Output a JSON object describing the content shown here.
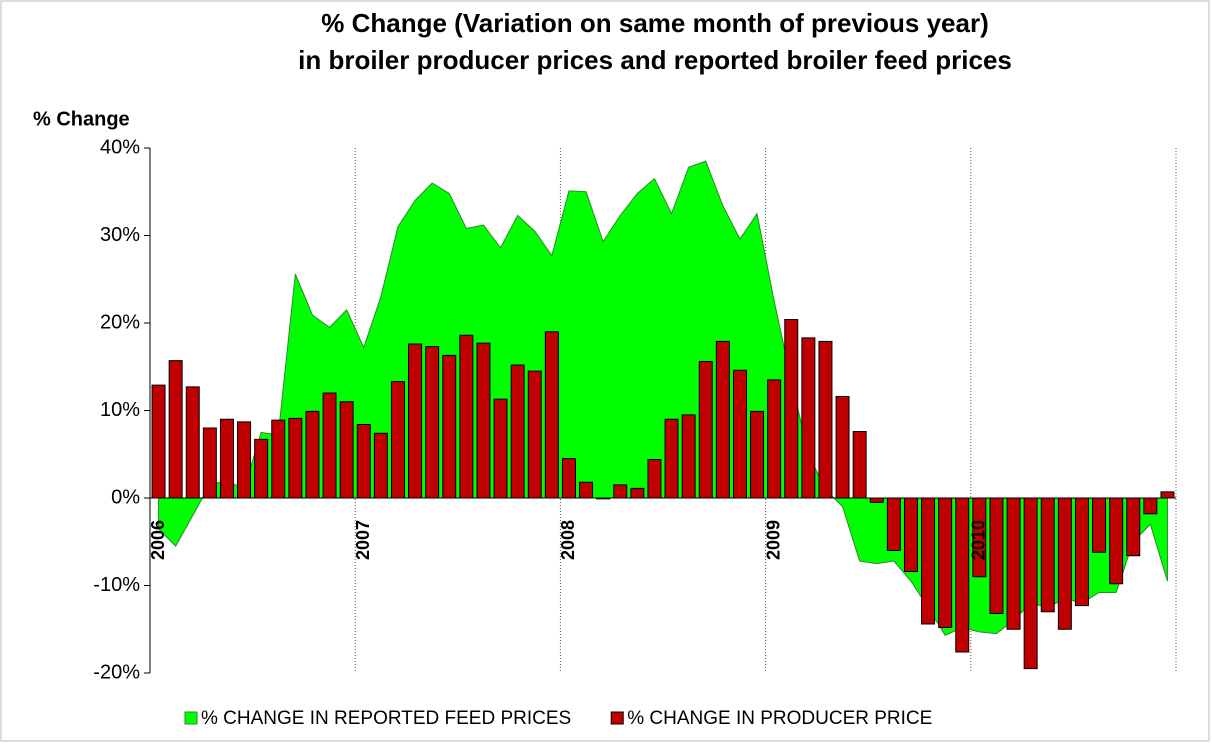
{
  "chart_data": {
    "type": "bar-area",
    "title": [
      "% Change (Variation on same month of previous year)",
      "in broiler producer prices and reported broiler feed prices"
    ],
    "y_label": "% Change",
    "categories": [
      "2006",
      null,
      null,
      null,
      null,
      null,
      null,
      null,
      null,
      null,
      null,
      null,
      "2007",
      null,
      null,
      null,
      null,
      null,
      null,
      null,
      null,
      null,
      null,
      null,
      "2008",
      null,
      null,
      null,
      null,
      null,
      null,
      null,
      null,
      null,
      null,
      null,
      "2009",
      null,
      null,
      null,
      null,
      null,
      null,
      null,
      null,
      null,
      null,
      null,
      "2010",
      null,
      null,
      null,
      null,
      null,
      null,
      null,
      null,
      null,
      null,
      null
    ],
    "series": [
      {
        "name": "% CHANGE IN REPORTED FEED PRICES",
        "kind": "area",
        "color": "#00ff00",
        "values": [
          -3.5,
          -5.5,
          -2.0,
          1.5,
          2.0,
          1.0,
          7.5,
          7.2,
          25.6,
          20.9,
          19.5,
          21.5,
          17.2,
          23.0,
          31.0,
          34.0,
          36.0,
          34.8,
          30.8,
          31.2,
          28.6,
          32.3,
          30.5,
          27.7,
          35.1,
          35.0,
          29.3,
          32.3,
          34.8,
          36.5,
          32.5,
          37.8,
          38.5,
          33.4,
          29.6,
          32.5,
          22.5,
          13.5,
          5.0,
          1.0,
          -1.0,
          -7.2,
          -7.5,
          -7.2,
          -9.5,
          -12.5,
          -15.7,
          -14.8,
          -15.3,
          -15.5,
          -14.0,
          -12.0,
          -12.5,
          -11.5,
          -12.0,
          -10.8,
          -10.8,
          -5.0,
          -3.0,
          -9.5
        ]
      },
      {
        "name": "% CHANGE IN PRODUCER PRICE",
        "kind": "bar",
        "color": "#c00000",
        "values": [
          12.9,
          15.7,
          12.7,
          8.0,
          9.0,
          8.7,
          6.7,
          8.9,
          9.1,
          9.9,
          12.0,
          11.0,
          8.4,
          7.4,
          13.3,
          17.6,
          17.3,
          16.3,
          18.6,
          17.7,
          11.3,
          15.2,
          14.5,
          19.0,
          4.5,
          1.8,
          -0.1,
          1.5,
          1.1,
          4.4,
          9.0,
          9.5,
          15.6,
          17.9,
          14.6,
          9.9,
          13.5,
          20.4,
          18.3,
          17.9,
          11.6,
          7.6,
          -0.5,
          -6.0,
          -8.4,
          -14.4,
          -14.8,
          -17.6,
          -9.0,
          -13.2,
          -15.0,
          -19.5,
          -13.0,
          -15.0,
          -12.3,
          -6.2,
          -9.8,
          -6.6,
          -1.8,
          0.7
        ]
      }
    ],
    "ylim": [
      -20,
      40
    ],
    "yticks": [
      {
        "value": -20,
        "label": "-20%"
      },
      {
        "value": -10,
        "label": "-10%"
      },
      {
        "value": 0,
        "label": "0%"
      },
      {
        "value": 10,
        "label": "10%"
      },
      {
        "value": 20,
        "label": "20%"
      },
      {
        "value": 30,
        "label": "30%"
      },
      {
        "value": 40,
        "label": "40%"
      }
    ],
    "legend": "bottom"
  }
}
